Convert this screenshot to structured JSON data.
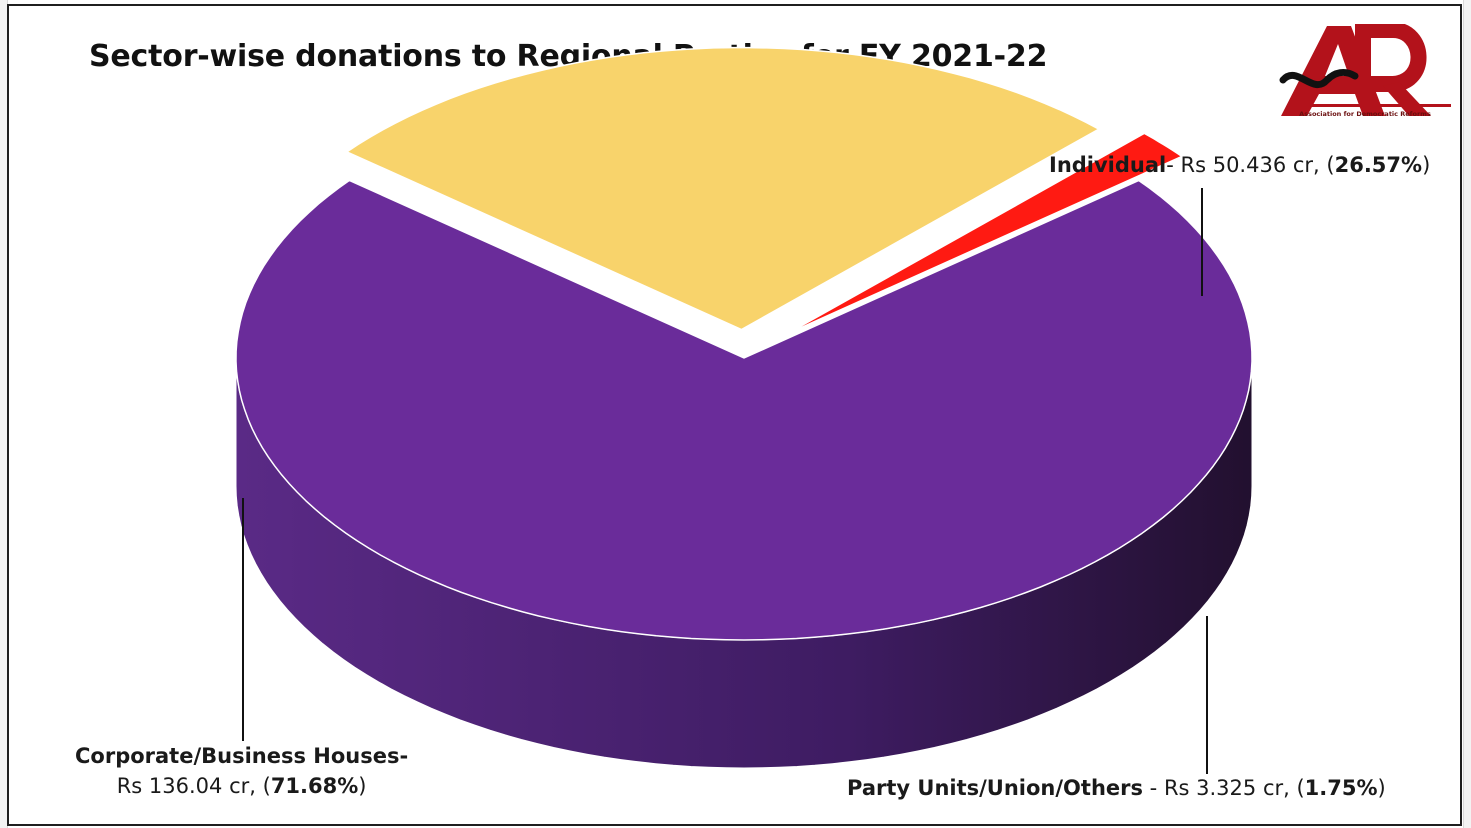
{
  "chart_data": {
    "type": "pie",
    "title": "Sector-wise donations to Regional Parties for FY 2021-22",
    "slices": [
      {
        "name": "Corporate/Business Houses",
        "amount_label": "Rs 136.04 cr,",
        "value": 136.04,
        "percent": 71.68,
        "percent_label": "71.68%",
        "color": "#6a2c9a",
        "side_color": "#3e1a5e"
      },
      {
        "name": "Individual",
        "amount_label": "Rs 50.436 cr,",
        "value": 50.436,
        "percent": 26.57,
        "percent_label": "26.57%",
        "color": "#f8d36b",
        "side_color": "#7a6630"
      },
      {
        "name": "Party Units/Union/Others",
        "amount_label": "Rs 3.325 cr,",
        "value": 3.325,
        "percent": 1.75,
        "percent_label": "1.75%",
        "color": "#ff1a12",
        "side_color": "#6e0000"
      }
    ],
    "style": "3d-exploded",
    "legend": "none"
  },
  "logo": {
    "text": "ADR",
    "caption": "Association for Democratic Reforms",
    "color": "#b3121b"
  }
}
